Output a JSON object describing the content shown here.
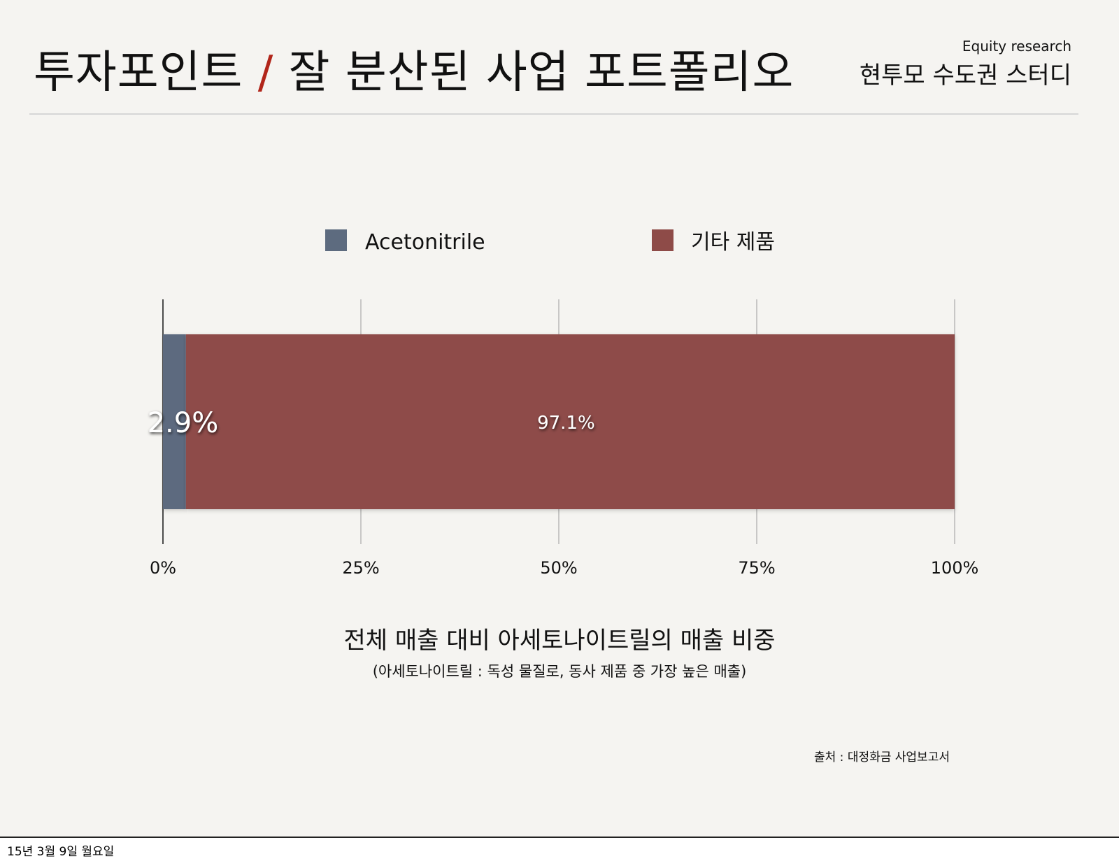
{
  "slide": {
    "title_main": "투자포인트",
    "title_sep": "/",
    "title_sub": "잘 분산된 사업 포트폴리오",
    "brand_en": "Equity research",
    "brand_ko": "현투모 수도권 스터디",
    "caption": "전체 매출 대비 아세토나이트릴의 매출 비중",
    "caption_sub": "(아세토나이트릴 : 독성 물질로, 동사 제품 중 가장 높은 매출)",
    "source": "출처 : 대정화금 사업보고서",
    "date": "15년 3월 9일 월요일"
  },
  "chart_data": {
    "type": "bar",
    "orientation": "horizontal",
    "stacked": true,
    "percent_stacked": true,
    "categories": [
      ""
    ],
    "series": [
      {
        "name": "Acetonitrile",
        "values": [
          2.9
        ],
        "label": "2.9%",
        "color": "#5d6b7f"
      },
      {
        "name": "기타 제품",
        "values": [
          97.1
        ],
        "label": "97.1%",
        "color": "#8e4b48"
      }
    ],
    "x_ticks": [
      "0%",
      "25%",
      "50%",
      "75%",
      "100%"
    ],
    "xlim": [
      0,
      100
    ],
    "grid": true,
    "legend_position": "top-center",
    "title": "",
    "xlabel": "",
    "ylabel": ""
  }
}
